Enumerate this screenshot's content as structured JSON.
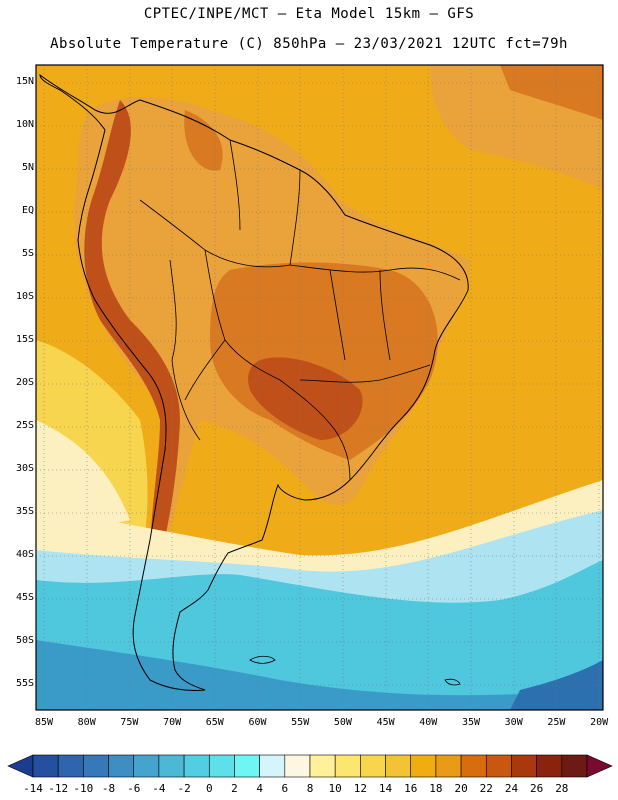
{
  "header": {
    "line1": "CPTEC/INPE/MCT –  Eta Model 15km – GFS",
    "line2": "Absolute Temperature (C) 850hPa – 23/03/2021 12UTC fct=79h"
  },
  "axes": {
    "lat_labels": [
      "15N",
      "10N",
      "5N",
      "EQ",
      "5S",
      "10S",
      "15S",
      "20S",
      "25S",
      "30S",
      "35S",
      "40S",
      "45S",
      "50S",
      "55S"
    ],
    "lon_labels": [
      "85W",
      "80W",
      "75W",
      "70W",
      "65W",
      "60W",
      "55W",
      "50W",
      "45W",
      "40W",
      "35W",
      "30W",
      "25W",
      "20W"
    ]
  },
  "colorbar": {
    "ticks": [
      "-14",
      "-12",
      "-10",
      "-8",
      "-6",
      "-4",
      "-2",
      "0",
      "2",
      "4",
      "6",
      "8",
      "10",
      "12",
      "14",
      "16",
      "18",
      "20",
      "22",
      "24",
      "26",
      "28"
    ],
    "colors": [
      "#1c3d8f",
      "#25509e",
      "#2e65ad",
      "#3779b8",
      "#3e8ec4",
      "#44a3cf",
      "#4bb8d8",
      "#53cde2",
      "#5fdfe9",
      "#70f5f5",
      "#d4f6fb",
      "#fdf6e0",
      "#fff09a",
      "#fde66f",
      "#f9d54f",
      "#f2c337",
      "#f0ad12",
      "#e89a18",
      "#d86d0e",
      "#c85810",
      "#a9390c",
      "#8a220e",
      "#6e1a14",
      "#7a0a30"
    ]
  },
  "map": {
    "region": "South America",
    "field": "Absolute Temperature (C) 850hPa",
    "palette": {
      "very_hot": "#c0501a",
      "hot": "#d97a22",
      "warm": "#eaa23a",
      "mild": "#f0ac18",
      "cool_yellow": "#f7d54f",
      "pale": "#fdf0c0",
      "cold_light": "#aee4f2",
      "cold": "#4fc7dc",
      "colder": "#3a9bc8",
      "coldest": "#2d70b0"
    }
  }
}
